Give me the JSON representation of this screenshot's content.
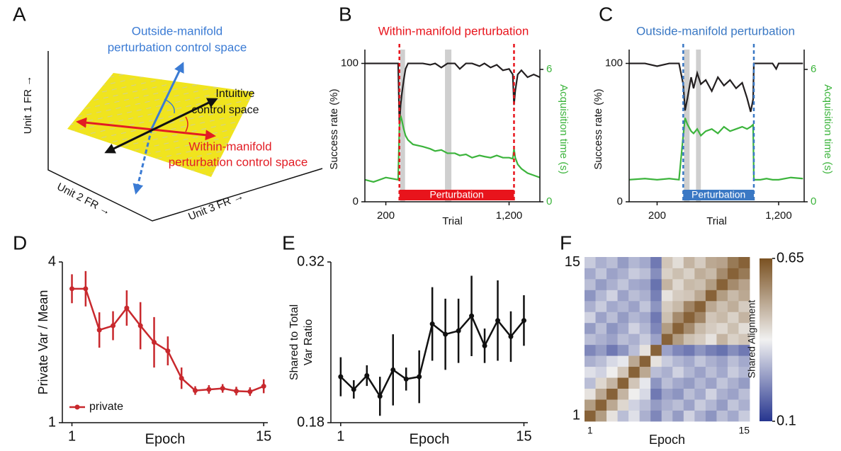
{
  "diagram": {
    "label": "A",
    "outside": [
      "Outside-manifold",
      "perturbation control space"
    ],
    "intuitive": [
      "Intuitive",
      "control space"
    ],
    "within": [
      "Within-manifold",
      "perturbation control space"
    ],
    "axes": [
      "Unit 1 FR →",
      "Unit 2 FR →",
      "Unit 3 FR →"
    ]
  },
  "chart_data": [
    {
      "panel": "B",
      "type": "line",
      "title": "Within-manifold perturbation",
      "title_color": "#e8141c",
      "xlabel": "Trial",
      "ylabel": "Success rate (%)",
      "y2label": "Acquisition time (s)",
      "x": [
        30,
        100,
        200,
        300,
        310,
        320,
        330,
        345,
        360,
        380,
        420,
        500,
        560,
        600,
        650,
        700,
        760,
        800,
        850,
        900,
        960,
        1000,
        1050,
        1100,
        1150,
        1200,
        1230,
        1240,
        1250,
        1270,
        1300,
        1350,
        1400,
        1450
      ],
      "xlim": [
        30,
        1450
      ],
      "xticks": [
        200,
        {
          "value": 1200,
          "label": "1,200"
        }
      ],
      "ylim": [
        0,
        110
      ],
      "yticks": [
        0,
        100
      ],
      "y2lim": [
        0,
        6.9
      ],
      "y2ticks": [
        0,
        6
      ],
      "series": [
        {
          "color": "#231f20",
          "values": [
            100,
            100,
            100,
            100,
            56,
            70,
            78,
            88,
            96,
            100,
            100,
            100,
            99,
            100,
            97,
            100,
            100,
            96,
            100,
            100,
            98,
            100,
            97,
            99,
            95,
            96,
            92,
            70,
            80,
            92,
            95,
            90,
            92,
            90
          ]
        },
        {
          "color": "#3cb43c",
          "axis": "y2",
          "values": [
            1.0,
            0.9,
            1.1,
            1.0,
            3.4,
            3.9,
            3.7,
            3.3,
            3.0,
            2.8,
            2.6,
            2.5,
            2.4,
            2.3,
            2.35,
            2.2,
            2.2,
            2.1,
            2.15,
            2.0,
            2.1,
            2.05,
            2.0,
            2.1,
            2.0,
            2.0,
            1.95,
            2.4,
            2.0,
            1.7,
            1.5,
            1.3,
            1.2,
            1.1
          ]
        }
      ],
      "perturbation": {
        "label": "Perturbation",
        "start": 310,
        "end": 1240,
        "color": "#e8141c"
      },
      "shaded": [
        [
          316,
          356
        ],
        [
          680,
          732
        ]
      ]
    },
    {
      "panel": "C",
      "type": "line",
      "title": "Outside-manifold perturbation",
      "title_color": "#3a78c4",
      "xlabel": "Trial",
      "ylabel": "Success rate (%)",
      "y2label": "Acquisition time (s)",
      "x": [
        -30,
        100,
        200,
        300,
        380,
        415,
        430,
        450,
        480,
        500,
        530,
        560,
        600,
        650,
        700,
        750,
        800,
        850,
        900,
        940,
        970,
        990,
        996,
        1050,
        1100,
        1150,
        1180,
        1200,
        1300,
        1400
      ],
      "xlim": [
        -30,
        1410
      ],
      "xticks": [
        200,
        {
          "value": 1200,
          "label": "1,200"
        }
      ],
      "ylim": [
        0,
        110
      ],
      "yticks": [
        0,
        100
      ],
      "y2lim": [
        0,
        6.9
      ],
      "y2ticks": [
        0,
        6
      ],
      "series": [
        {
          "color": "#231f20",
          "values": [
            100,
            100,
            98,
            100,
            100,
            85,
            66,
            75,
            90,
            82,
            93,
            85,
            88,
            80,
            90,
            84,
            88,
            82,
            86,
            75,
            65,
            74,
            100,
            100,
            100,
            100,
            96,
            100,
            100,
            100
          ]
        },
        {
          "color": "#3cb43c",
          "axis": "y2",
          "values": [
            1.0,
            1.05,
            1.0,
            1.05,
            1.0,
            3.0,
            3.8,
            3.5,
            3.2,
            3.1,
            3.3,
            3.0,
            3.2,
            3.3,
            3.1,
            3.4,
            3.2,
            3.3,
            3.4,
            3.3,
            3.4,
            3.5,
            1.0,
            1.0,
            1.05,
            1.0,
            1.0,
            1.0,
            1.1,
            1.05
          ]
        }
      ],
      "perturbation": {
        "label": "Perturbation",
        "start": 415,
        "end": 996,
        "color": "#3a78c4"
      },
      "shaded": [
        [
          421,
          467
        ],
        [
          520,
          560
        ]
      ]
    },
    {
      "panel": "D",
      "type": "errorbar",
      "xlabel": "Epoch",
      "ylabel": [
        "Private Var / Mean"
      ],
      "x": [
        1,
        2,
        3,
        4,
        5,
        6,
        7,
        8,
        9,
        10,
        11,
        12,
        13,
        14,
        15
      ],
      "xlim": [
        0.3,
        15.3
      ],
      "xticks": [
        1,
        15
      ],
      "ylim": [
        1,
        4
      ],
      "yticks": [
        1,
        4
      ],
      "legend": "lower left",
      "series": [
        {
          "name": "private",
          "color": "#c8282d",
          "values": [
            3.5,
            3.5,
            2.73,
            2.81,
            3.14,
            2.81,
            2.5,
            2.34,
            1.83,
            1.6,
            1.62,
            1.64,
            1.59,
            1.58,
            1.68
          ],
          "errors": [
            0.27,
            0.33,
            0.33,
            0.27,
            0.33,
            0.44,
            0.47,
            0.27,
            0.2,
            0.08,
            0.08,
            0.08,
            0.08,
            0.08,
            0.13
          ]
        }
      ]
    },
    {
      "panel": "E",
      "type": "errorbar",
      "xlabel": "Epoch",
      "ylabel": [
        "Shared to Total",
        "Var Ratio"
      ],
      "x": [
        1,
        2,
        3,
        4,
        5,
        6,
        7,
        8,
        9,
        10,
        11,
        12,
        13,
        14,
        15
      ],
      "xlim": [
        0.25,
        15.3
      ],
      "xticks": [
        1,
        15
      ],
      "ylim": [
        0.18,
        0.32
      ],
      "yticks": [
        0.18,
        0.32
      ],
      "series": [
        {
          "color": "#111111",
          "values": [
            0.22,
            0.209,
            0.221,
            0.203,
            0.226,
            0.218,
            0.22,
            0.266,
            0.257,
            0.26,
            0.273,
            0.247,
            0.269,
            0.255,
            0.269
          ],
          "errors": [
            0.017,
            0.008,
            0.009,
            0.017,
            0.031,
            0.01,
            0.023,
            0.032,
            0.031,
            0.028,
            0.035,
            0.015,
            0.035,
            0.022,
            0.022
          ]
        }
      ]
    },
    {
      "panel": "F",
      "type": "heatmap",
      "xlabel": "Epoch",
      "colorbar_label": "Shared Alignment",
      "xticks": [
        1,
        15
      ],
      "yticks": [
        1,
        15
      ],
      "clim": [
        0.1,
        0.65
      ],
      "cticks": [
        0.1,
        0.65
      ],
      "colormap": [
        "#26358f",
        "#f1f1f1",
        "#7a5121"
      ],
      "values": [
        [
          0.62,
          0.52,
          0.4,
          0.3,
          0.35,
          0.28,
          0.22,
          0.3,
          0.25,
          0.33,
          0.28,
          0.24,
          0.3,
          0.27,
          0.32
        ],
        [
          0.52,
          0.62,
          0.5,
          0.42,
          0.33,
          0.3,
          0.25,
          0.28,
          0.3,
          0.26,
          0.32,
          0.29,
          0.25,
          0.31,
          0.28
        ],
        [
          0.4,
          0.5,
          0.62,
          0.48,
          0.38,
          0.34,
          0.2,
          0.26,
          0.24,
          0.3,
          0.27,
          0.33,
          0.28,
          0.26,
          0.3
        ],
        [
          0.3,
          0.42,
          0.48,
          0.62,
          0.45,
          0.36,
          0.24,
          0.3,
          0.27,
          0.25,
          0.29,
          0.26,
          0.31,
          0.28,
          0.25
        ],
        [
          0.35,
          0.33,
          0.38,
          0.45,
          0.62,
          0.5,
          0.3,
          0.28,
          0.33,
          0.29,
          0.26,
          0.3,
          0.27,
          0.32,
          0.29
        ],
        [
          0.28,
          0.3,
          0.34,
          0.36,
          0.5,
          0.62,
          0.4,
          0.32,
          0.29,
          0.27,
          0.31,
          0.28,
          0.26,
          0.3,
          0.27
        ],
        [
          0.22,
          0.25,
          0.2,
          0.24,
          0.3,
          0.4,
          0.62,
          0.26,
          0.22,
          0.2,
          0.24,
          0.21,
          0.19,
          0.23,
          0.2
        ],
        [
          0.3,
          0.28,
          0.26,
          0.3,
          0.28,
          0.32,
          0.26,
          0.62,
          0.52,
          0.46,
          0.44,
          0.4,
          0.48,
          0.43,
          0.45
        ],
        [
          0.25,
          0.3,
          0.24,
          0.27,
          0.33,
          0.29,
          0.22,
          0.52,
          0.62,
          0.55,
          0.47,
          0.44,
          0.42,
          0.46,
          0.41
        ],
        [
          0.33,
          0.26,
          0.3,
          0.25,
          0.29,
          0.27,
          0.2,
          0.46,
          0.55,
          0.62,
          0.56,
          0.45,
          0.47,
          0.43,
          0.48
        ],
        [
          0.28,
          0.32,
          0.27,
          0.29,
          0.26,
          0.31,
          0.24,
          0.44,
          0.47,
          0.56,
          0.62,
          0.5,
          0.46,
          0.49,
          0.44
        ],
        [
          0.24,
          0.29,
          0.33,
          0.26,
          0.3,
          0.28,
          0.21,
          0.4,
          0.44,
          0.45,
          0.5,
          0.62,
          0.52,
          0.47,
          0.5
        ],
        [
          0.3,
          0.25,
          0.28,
          0.31,
          0.27,
          0.26,
          0.19,
          0.48,
          0.42,
          0.47,
          0.46,
          0.52,
          0.62,
          0.55,
          0.51
        ],
        [
          0.27,
          0.31,
          0.26,
          0.28,
          0.32,
          0.3,
          0.23,
          0.43,
          0.46,
          0.43,
          0.49,
          0.47,
          0.55,
          0.62,
          0.58
        ],
        [
          0.32,
          0.28,
          0.3,
          0.25,
          0.29,
          0.27,
          0.2,
          0.45,
          0.41,
          0.48,
          0.44,
          0.5,
          0.51,
          0.58,
          0.62
        ]
      ]
    }
  ]
}
